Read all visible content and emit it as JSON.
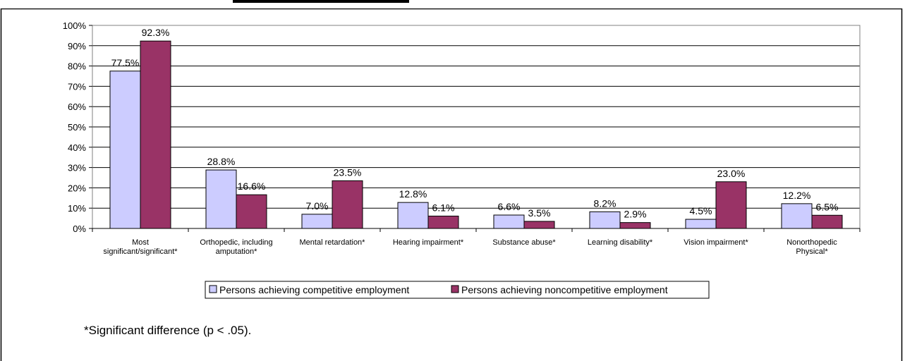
{
  "chart_data": {
    "type": "bar",
    "categories": [
      [
        "Most",
        "significant/significant*"
      ],
      [
        "Orthopedic, including",
        "amputation*"
      ],
      [
        "Mental retardation*"
      ],
      [
        "Hearing impairment*"
      ],
      [
        "Substance abuse*"
      ],
      [
        "Learning disability*"
      ],
      [
        "Vision impairment*"
      ],
      [
        "Nonorthopedic",
        "Physical*"
      ]
    ],
    "series": [
      {
        "name": "Persons achieving competitive employment",
        "color": "#ccccff",
        "values": [
          77.5,
          28.8,
          7.0,
          12.8,
          6.6,
          8.2,
          4.5,
          12.2
        ],
        "labels": [
          "77.5%",
          "28.8%",
          "7.0%",
          "12.8%",
          "6.6%",
          "8.2%",
          "4.5%",
          "12.2%"
        ]
      },
      {
        "name": "Persons achieving noncompetitive employment",
        "color": "#993366",
        "values": [
          92.3,
          16.6,
          23.5,
          6.1,
          3.5,
          2.9,
          23.0,
          6.5
        ],
        "labels": [
          "92.3%",
          "16.6%",
          "23.5%",
          "6.1%",
          "3.5%",
          "2.9%",
          "23.0%",
          "6.5%"
        ]
      }
    ],
    "ylim": [
      0,
      100
    ],
    "yticks": [
      "0%",
      "10%",
      "20%",
      "30%",
      "40%",
      "50%",
      "60%",
      "70%",
      "80%",
      "90%",
      "100%"
    ],
    "grid": true,
    "legend_position": "bottom"
  },
  "footnote": "*Significant difference (p < .05)."
}
